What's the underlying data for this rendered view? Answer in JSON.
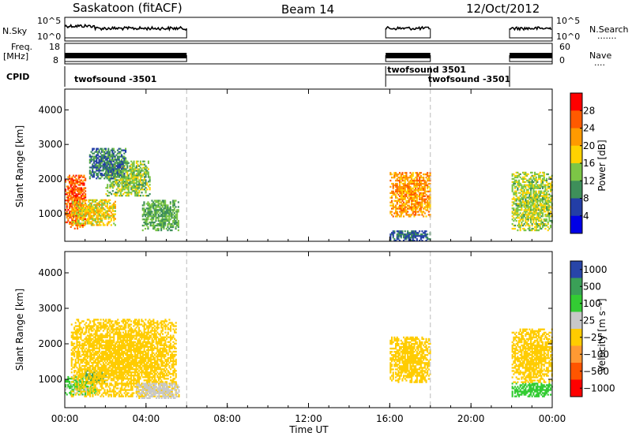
{
  "header": {
    "station": "Saskatoon (fitACF)",
    "beam": "Beam 14",
    "date": "12/Oct/2012"
  },
  "sky_panel": {
    "left_label": "N.Sky",
    "left_ticks": [
      "10^5",
      "10^0"
    ],
    "right_label": "N.Search",
    "right_ticks": [
      "10^5",
      "10^0"
    ],
    "right_key": "·······"
  },
  "freq_panel": {
    "left_label_top": "Freq.",
    "left_label_bottom": "[MHz]",
    "left_ticks": [
      "18",
      "8"
    ],
    "right_label": "Nave",
    "right_ticks": [
      "60",
      "0"
    ],
    "right_key": "····"
  },
  "cpid_panel": {
    "label": "CPID",
    "segments": [
      "twofsound -3501",
      "twofsound 3501",
      "twofsound -3501"
    ]
  },
  "power_panel": {
    "ylabel": "Slant Range [km]",
    "yticks": [
      "4000",
      "3000",
      "2000",
      "1000"
    ],
    "colorbar_label": "Power [dB]",
    "colorbar_ticks": [
      "28",
      "24",
      "20",
      "16",
      "12",
      "8",
      "4"
    ],
    "colorbar_colors": [
      "#ff0000",
      "#ff5a00",
      "#ff9a00",
      "#ffd200",
      "#7cc646",
      "#3e8f5a",
      "#233ea6",
      "#0000e6"
    ]
  },
  "velocity_panel": {
    "ylabel": "Slant Range [km]",
    "yticks": [
      "4000",
      "3000",
      "2000",
      "1000"
    ],
    "colorbar_label": "Velocity [m s⁻¹]",
    "colorbar_ticks": [
      "1000",
      "500",
      "100",
      "25",
      "−25",
      "−100",
      "−500",
      "−1000"
    ],
    "colorbar_colors": [
      "#2845a8",
      "#3aa057",
      "#33cc33",
      "#c8c8c8",
      "#ffcc00",
      "#ff9933",
      "#ff5500",
      "#ff0000"
    ]
  },
  "xaxis": {
    "label": "Time UT",
    "ticks": [
      "00:00",
      "04:00",
      "08:00",
      "12:00",
      "16:00",
      "20:00",
      "00:00"
    ]
  },
  "chart_data": {
    "type": "heatmap",
    "x_unit": "hours UT",
    "xlim": [
      0,
      24
    ],
    "ylim": [
      200,
      4600
    ],
    "data_windows_hours": [
      [
        0.0,
        6.0
      ],
      [
        15.8,
        18.0
      ],
      [
        21.9,
        24.0
      ]
    ],
    "power_blobs": [
      {
        "t": [
          0.0,
          1.0
        ],
        "r": [
          550,
          2100
        ],
        "val": 26
      },
      {
        "t": [
          0.3,
          2.5
        ],
        "r": [
          650,
          1400
        ],
        "val": 18
      },
      {
        "t": [
          2.0,
          4.2
        ],
        "r": [
          1500,
          2500
        ],
        "val": 14
      },
      {
        "t": [
          3.8,
          5.6
        ],
        "r": [
          500,
          1400
        ],
        "val": 12
      },
      {
        "t": [
          1.2,
          3.0
        ],
        "r": [
          2000,
          2900
        ],
        "val": 9
      },
      {
        "t": [
          16.0,
          18.0
        ],
        "r": [
          900,
          2200
        ],
        "val": 22
      },
      {
        "t": [
          16.0,
          18.0
        ],
        "r": [
          200,
          500
        ],
        "val": 8
      },
      {
        "t": [
          22.0,
          24.0
        ],
        "r": [
          500,
          2200
        ],
        "val": 15
      }
    ],
    "velocity_blobs": [
      {
        "t": [
          0.0,
          1.5
        ],
        "r": [
          550,
          1100
        ],
        "val": 120
      },
      {
        "t": [
          1.0,
          2.0
        ],
        "r": [
          900,
          1300
        ],
        "val": 600
      },
      {
        "t": [
          0.3,
          5.5
        ],
        "r": [
          500,
          2700
        ],
        "val": 10
      },
      {
        "t": [
          3.5,
          5.6
        ],
        "r": [
          450,
          900
        ],
        "val": 60
      },
      {
        "t": [
          16.0,
          18.0
        ],
        "r": [
          900,
          2200
        ],
        "val": 5
      },
      {
        "t": [
          22.0,
          24.0
        ],
        "r": [
          500,
          900
        ],
        "val": 150
      },
      {
        "t": [
          22.0,
          24.0
        ],
        "r": [
          900,
          2400
        ],
        "val": -10
      }
    ]
  }
}
